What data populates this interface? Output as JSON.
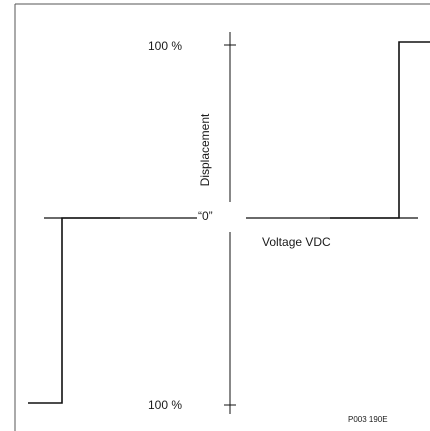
{
  "diagram": {
    "labels": {
      "top_percent": "100 %",
      "bottom_percent": "100 %",
      "zero": "“0”",
      "x_axis": "Voltage VDC",
      "y_axis": "Displacement",
      "figure_code": "P003 190E"
    },
    "colors": {
      "line": "#111111",
      "frame": "#555555",
      "text": "#1a1a1a",
      "background": "#ffffff"
    }
  }
}
